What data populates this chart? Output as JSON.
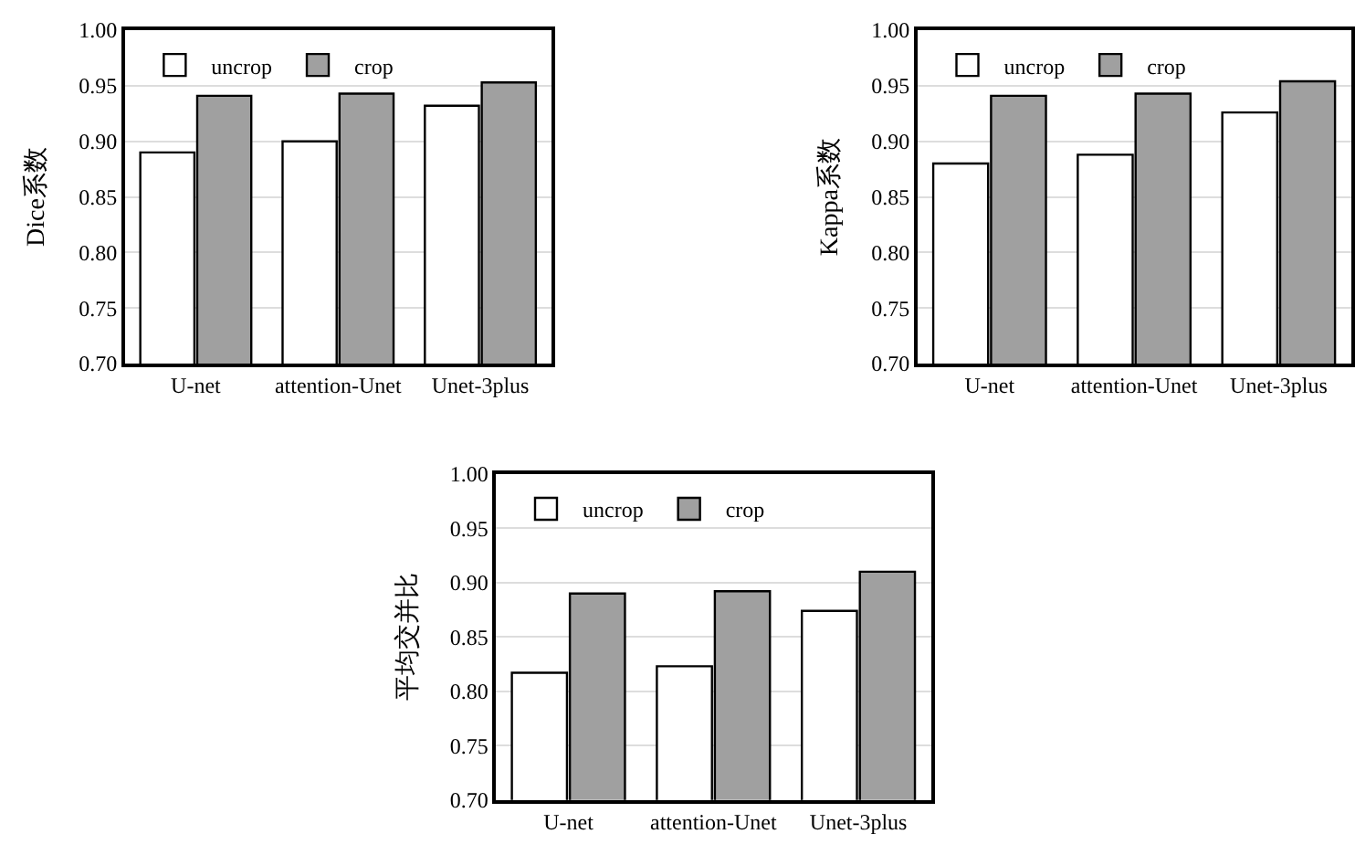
{
  "chart_data": [
    {
      "type": "bar",
      "ylabel": "Dice系数",
      "categories": [
        "U-net",
        "attention-Unet",
        "Unet-3plus"
      ],
      "series": [
        {
          "name": "uncrop",
          "color": "#ffffff",
          "values": [
            0.89,
            0.9,
            0.932
          ]
        },
        {
          "name": "crop",
          "color": "#a0a0a0",
          "values": [
            0.941,
            0.943,
            0.953
          ]
        }
      ],
      "ylim": [
        0.7,
        1.0
      ],
      "yticks": [
        {
          "value": 0.7,
          "label": "0.70"
        },
        {
          "value": 0.75,
          "label": "0.75"
        },
        {
          "value": 0.8,
          "label": "0.80"
        },
        {
          "value": 0.85,
          "label": "0.85"
        },
        {
          "value": 0.9,
          "label": "0.90"
        },
        {
          "value": 0.95,
          "label": "0.95"
        },
        {
          "value": 1.0,
          "label": "1.00"
        }
      ],
      "grid": "y",
      "legend": "top left"
    },
    {
      "type": "bar",
      "ylabel": "Kappa系数",
      "categories": [
        "U-net",
        "attention-Unet",
        "Unet-3plus"
      ],
      "series": [
        {
          "name": "uncrop",
          "color": "#ffffff",
          "values": [
            0.88,
            0.888,
            0.926
          ]
        },
        {
          "name": "crop",
          "color": "#a0a0a0",
          "values": [
            0.941,
            0.943,
            0.954
          ]
        }
      ],
      "ylim": [
        0.7,
        1.0
      ],
      "yticks": [
        {
          "value": 0.7,
          "label": "0.70"
        },
        {
          "value": 0.75,
          "label": "0.75"
        },
        {
          "value": 0.8,
          "label": "0.80"
        },
        {
          "value": 0.85,
          "label": "0.85"
        },
        {
          "value": 0.9,
          "label": "0.90"
        },
        {
          "value": 0.95,
          "label": "0.95"
        },
        {
          "value": 1.0,
          "label": "1.00"
        }
      ],
      "grid": "y",
      "legend": "top left"
    },
    {
      "type": "bar",
      "ylabel": "平均交并比",
      "categories": [
        "U-net",
        "attention-Unet",
        "Unet-3plus"
      ],
      "series": [
        {
          "name": "uncrop",
          "color": "#ffffff",
          "values": [
            0.817,
            0.823,
            0.874
          ]
        },
        {
          "name": "crop",
          "color": "#a0a0a0",
          "values": [
            0.89,
            0.892,
            0.91
          ]
        }
      ],
      "ylim": [
        0.7,
        1.0
      ],
      "yticks": [
        {
          "value": 0.7,
          "label": "0.70"
        },
        {
          "value": 0.75,
          "label": "0.75"
        },
        {
          "value": 0.8,
          "label": "0.80"
        },
        {
          "value": 0.85,
          "label": "0.85"
        },
        {
          "value": 0.9,
          "label": "0.90"
        },
        {
          "value": 0.95,
          "label": "0.95"
        },
        {
          "value": 1.0,
          "label": "1.00"
        }
      ],
      "grid": "y",
      "legend": "top left"
    }
  ]
}
